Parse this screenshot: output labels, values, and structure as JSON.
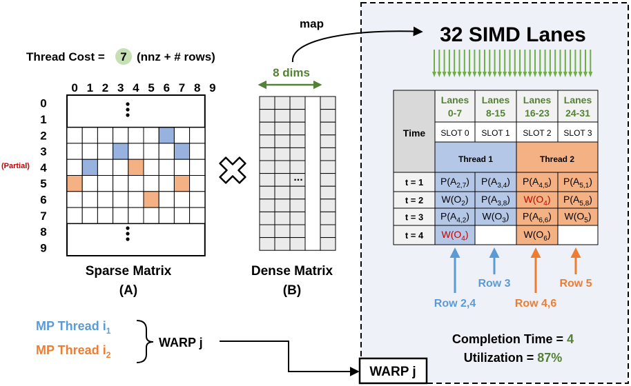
{
  "thread_cost": {
    "prefix": "Thread Cost =",
    "value": "7",
    "suffix": "(nnz + # rows)"
  },
  "map_label": "map",
  "simd_title": "32 SIMD Lanes",
  "sparse": {
    "col_index": [
      "0",
      "1",
      "2",
      "3",
      "4",
      "5",
      "6",
      "7",
      "8",
      "9"
    ],
    "row_index": [
      "0",
      "1",
      "2",
      "3",
      "4",
      "5",
      "6",
      "7",
      "8",
      "9"
    ],
    "partial_label": "(Partial)",
    "title": "Sparse Matrix",
    "subtitle": "(A)"
  },
  "dense": {
    "dims_label": "8 dims",
    "ellipsis": "...",
    "title": "Dense Matrix",
    "subtitle": "(B)"
  },
  "legend": {
    "thread1": "MP Thread i",
    "thread1_sub": "1",
    "thread2": "MP Thread i",
    "thread2_sub": "2",
    "warp": "WARP j"
  },
  "warp_box": "WARP j",
  "table": {
    "time_header": "Time",
    "lanes": [
      {
        "l1": "Lanes",
        "l2": "0-7"
      },
      {
        "l1": "Lanes",
        "l2": "8-15"
      },
      {
        "l1": "Lanes",
        "l2": "16-23"
      },
      {
        "l1": "Lanes",
        "l2": "24-31"
      }
    ],
    "slots": [
      "SLOT 0",
      "SLOT 1",
      "SLOT 2",
      "SLOT 3"
    ],
    "threads": [
      "Thread 1",
      "Thread 2"
    ],
    "rows": [
      {
        "t": "t = 1",
        "cells": [
          {
            "op": "P",
            "a": "A",
            "sub": "2,7",
            "red": false
          },
          {
            "op": "P",
            "a": "A",
            "sub": "3,4",
            "red": false
          },
          {
            "op": "P",
            "a": "A",
            "sub": "4,5",
            "red": false
          },
          {
            "op": "P",
            "a": "A",
            "sub": "5,1",
            "red": false
          }
        ]
      },
      {
        "t": "t = 2",
        "cells": [
          {
            "op": "W",
            "a": "O",
            "sub": "2",
            "red": false
          },
          {
            "op": "P",
            "a": "A",
            "sub": "3,8",
            "red": false
          },
          {
            "op": "W",
            "a": "O",
            "sub": "4",
            "red": true
          },
          {
            "op": "P",
            "a": "A",
            "sub": "5,8",
            "red": false
          }
        ]
      },
      {
        "t": "t = 3",
        "cells": [
          {
            "op": "P",
            "a": "A",
            "sub": "4,2",
            "red": false
          },
          {
            "op": "W",
            "a": "O",
            "sub": "3",
            "red": false
          },
          {
            "op": "P",
            "a": "A",
            "sub": "6,6",
            "red": false
          },
          {
            "op": "W",
            "a": "O",
            "sub": "5",
            "red": false
          }
        ]
      },
      {
        "t": "t = 4",
        "cells": [
          {
            "op": "W",
            "a": "O",
            "sub": "4",
            "red": true
          },
          null,
          {
            "op": "W",
            "a": "O",
            "sub": "6",
            "red": false
          },
          null
        ]
      }
    ]
  },
  "row_labels": {
    "a": "Row 2,4",
    "b": "Row 3",
    "c": "Row 4,6",
    "d": "Row 5"
  },
  "completion": {
    "label": "Completion Time =",
    "value": "4"
  },
  "utilization": {
    "label": "Utilization =",
    "value": "87%"
  },
  "colors": {
    "blue": "#b4c7e7",
    "blue_dark": "#4472c4",
    "blue_text": "#5b9bd5",
    "orange": "#f4b183",
    "orange_text": "#ed7d31",
    "green": "#538135",
    "green_arrow": "#70ad47",
    "green_badge": "#c5e0b4",
    "red": "#c00000",
    "panel": "#eef1f8"
  }
}
